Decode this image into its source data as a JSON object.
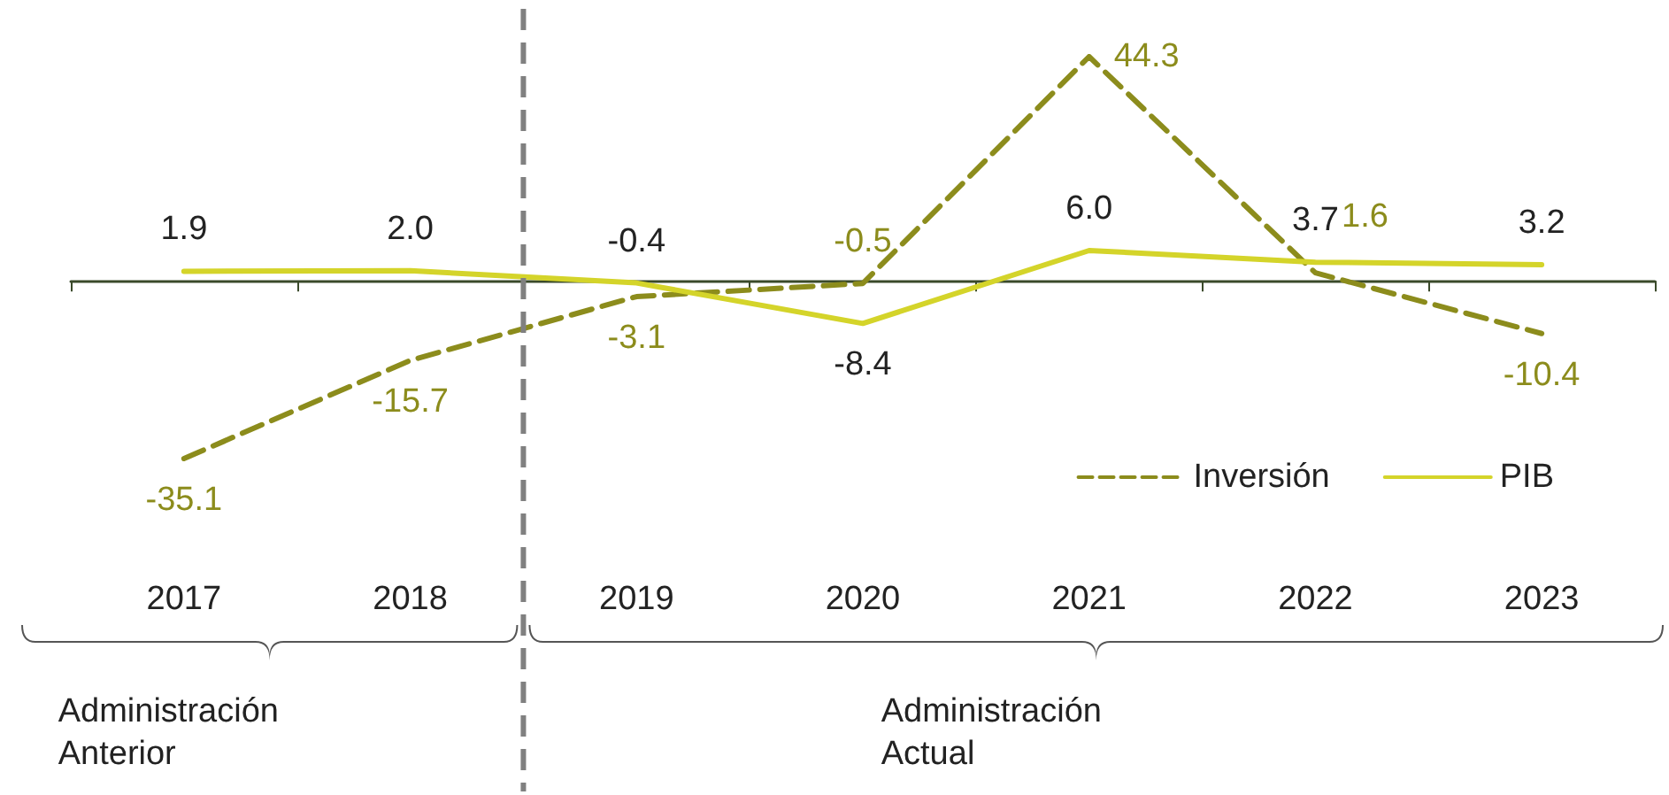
{
  "chart_data": {
    "type": "line",
    "categories": [
      "2017",
      "2018",
      "2019",
      "2020",
      "2021",
      "2022",
      "2023"
    ],
    "series": [
      {
        "name": "Inversión",
        "color": "#8c8c1c",
        "line_style": "dashed",
        "values": [
          -35.1,
          -15.7,
          -3.1,
          -0.5,
          44.3,
          1.6,
          -10.4
        ],
        "value_labels": [
          "-35.1",
          "-15.7",
          "-3.1",
          "-0.5",
          "44.3",
          "1.6",
          "-10.4"
        ]
      },
      {
        "name": "PIB",
        "color": "#d4d42a",
        "line_style": "solid",
        "values": [
          1.9,
          2.0,
          -0.4,
          -8.4,
          6.0,
          3.7,
          3.2
        ],
        "value_labels": [
          "1.9",
          "2.0",
          "-0.4",
          "-8.4",
          "6.0",
          "3.7",
          "3.2"
        ]
      }
    ],
    "legend": "bottom right",
    "marker": "none",
    "grid": false,
    "annotations": [
      "Administración Anterior",
      "Administración Actual"
    ]
  }
}
